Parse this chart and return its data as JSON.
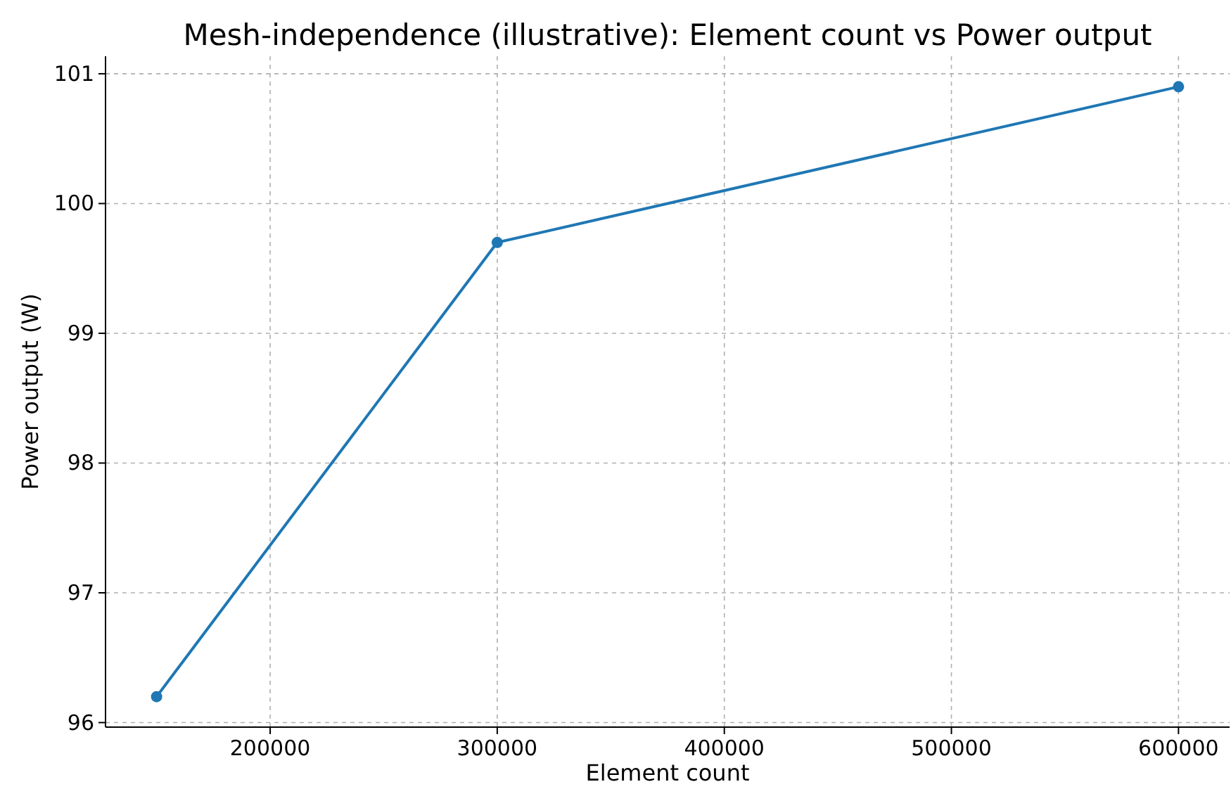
{
  "chart_data": {
    "type": "line",
    "title": "Mesh-independence (illustrative): Element count vs Power output",
    "xlabel": "Element count",
    "ylabel": "Power output (W)",
    "x": [
      150000,
      300000,
      600000
    ],
    "series": [
      {
        "color": "#1f77b4",
        "values": [
          96.2,
          99.7,
          100.9
        ]
      }
    ],
    "xlim": [
      127500,
      622500
    ],
    "xticks": [
      200000,
      300000,
      400000,
      500000,
      600000
    ],
    "ylim": [
      95.965,
      101.135
    ],
    "yticks": [
      96,
      97,
      98,
      99,
      100,
      101
    ],
    "grid": true,
    "marker": "circle",
    "line_style": "solid"
  }
}
